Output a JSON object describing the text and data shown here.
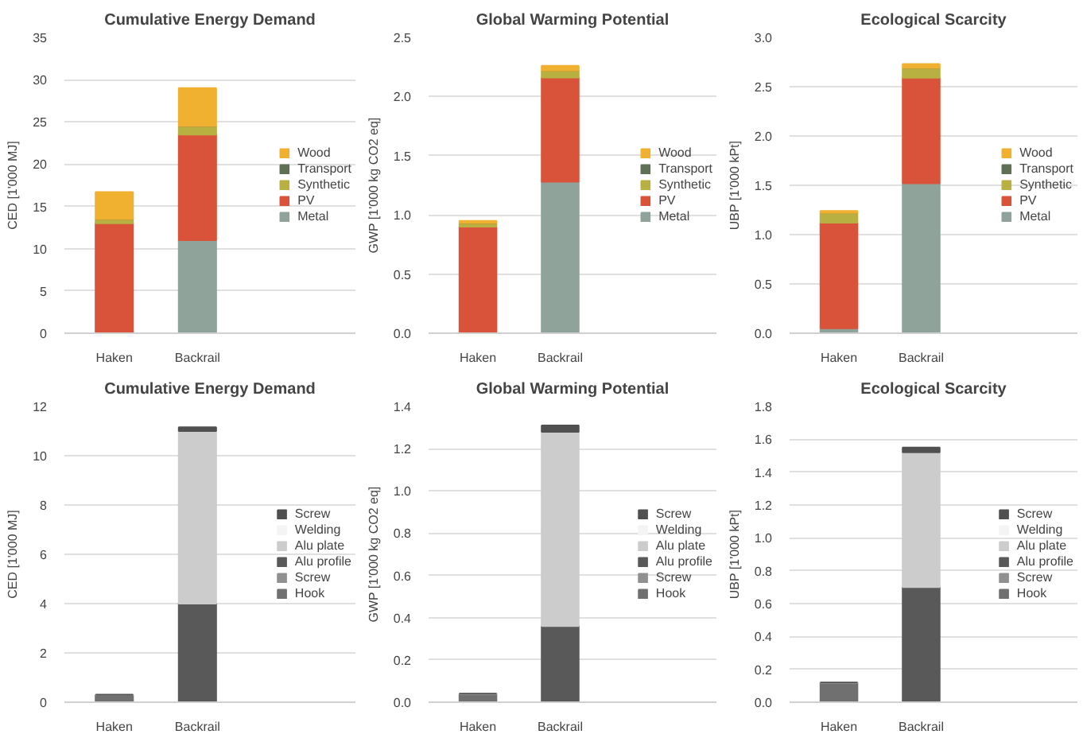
{
  "chart_data": [
    {
      "type": "bar",
      "title": "Cumulative Energy Demand",
      "ylabel": "CED [1'000 MJ]",
      "categories": [
        "Haken",
        "Backrail"
      ],
      "stacked": true,
      "ylim": [
        0,
        35
      ],
      "yticks": [
        0,
        5,
        10,
        15,
        20,
        25,
        30,
        35
      ],
      "grid": "y",
      "legend": "right",
      "series": [
        {
          "name": "Metal",
          "color": "#8fa39a",
          "values": [
            0,
            11
          ]
        },
        {
          "name": "PV",
          "color": "#d9533a",
          "values": [
            13,
            12.5
          ]
        },
        {
          "name": "Synthetic",
          "color": "#b8b040",
          "values": [
            0.5,
            1
          ]
        },
        {
          "name": "Transport",
          "color": "#5f7057",
          "values": [
            0,
            0
          ]
        },
        {
          "name": "Wood",
          "color": "#f0b030",
          "values": [
            3.2,
            4.5
          ]
        }
      ]
    },
    {
      "type": "bar",
      "title": "Global Warming Potential",
      "ylabel": "GWP [1'000 kg CO2 eq]",
      "categories": [
        "Haken",
        "Backrail"
      ],
      "stacked": true,
      "ylim": [
        0,
        2.5
      ],
      "yticks": [
        {
          "value": 0,
          "label": "0.0"
        },
        {
          "value": 0.5,
          "label": "0.5"
        },
        {
          "value": 1,
          "label": "1.0"
        },
        {
          "value": 1.5,
          "label": "1.5"
        },
        {
          "value": 2,
          "label": "2.0"
        },
        {
          "value": 2.5,
          "label": "2.5"
        }
      ],
      "grid": "y",
      "legend": "right",
      "series": [
        {
          "name": "Metal",
          "color": "#8fa39a",
          "values": [
            0,
            1.28
          ]
        },
        {
          "name": "PV",
          "color": "#d9533a",
          "values": [
            0.9,
            0.88
          ]
        },
        {
          "name": "Synthetic",
          "color": "#b8b040",
          "values": [
            0.03,
            0.06
          ]
        },
        {
          "name": "Transport",
          "color": "#5f7057",
          "values": [
            0,
            0
          ]
        },
        {
          "name": "Wood",
          "color": "#f0b030",
          "values": [
            0.02,
            0.04
          ]
        }
      ]
    },
    {
      "type": "bar",
      "title": "Ecological Scarcity",
      "ylabel": "UBP [1'000 kPt]",
      "categories": [
        "Haken",
        "Backrail"
      ],
      "stacked": true,
      "ylim": [
        0,
        3
      ],
      "yticks": [
        {
          "value": 0,
          "label": "0.0"
        },
        {
          "value": 0.5,
          "label": "0.5"
        },
        {
          "value": 1,
          "label": "1.0"
        },
        {
          "value": 1.5,
          "label": "1.5"
        },
        {
          "value": 2,
          "label": "2.0"
        },
        {
          "value": 2.5,
          "label": "2.5"
        },
        {
          "value": 3,
          "label": "3.0"
        }
      ],
      "grid": "y",
      "legend": "right",
      "series": [
        {
          "name": "Metal",
          "color": "#8fa39a",
          "values": [
            0.05,
            1.52
          ]
        },
        {
          "name": "PV",
          "color": "#d9533a",
          "values": [
            1.07,
            1.07
          ]
        },
        {
          "name": "Synthetic",
          "color": "#b8b040",
          "values": [
            0.1,
            0.1
          ]
        },
        {
          "name": "Transport",
          "color": "#5f7057",
          "values": [
            0,
            0
          ]
        },
        {
          "name": "Wood",
          "color": "#f0b030",
          "values": [
            0.02,
            0.04
          ]
        }
      ]
    },
    {
      "type": "bar",
      "title": "Cumulative Energy Demand",
      "ylabel": "CED [1'000 MJ]",
      "categories": [
        "Haken",
        "Backrail"
      ],
      "stacked": true,
      "ylim": [
        0,
        12
      ],
      "yticks": [
        0,
        2,
        4,
        6,
        8,
        10,
        12
      ],
      "grid": "y",
      "legend": "right",
      "series": [
        {
          "name": "Hook",
          "color": "#707070",
          "values": [
            0.3,
            0
          ]
        },
        {
          "name": "Screw",
          "color": "#909090",
          "values": [
            0,
            0
          ]
        },
        {
          "name": "Alu profile",
          "color": "#595959",
          "values": [
            0,
            4.0
          ]
        },
        {
          "name": "Alu plate",
          "color": "#cccccc",
          "values": [
            0,
            7.0
          ]
        },
        {
          "name": "Welding",
          "color": "#f4f4f4",
          "values": [
            0,
            0
          ]
        },
        {
          "name": "Screw",
          "color": "#505050",
          "values": [
            0,
            0.15
          ]
        }
      ]
    },
    {
      "type": "bar",
      "title": "Global Warming Potential",
      "ylabel": "GWP [1'000 kg CO2 eq]",
      "categories": [
        "Haken",
        "Backrail"
      ],
      "stacked": true,
      "ylim": [
        0,
        1.4
      ],
      "yticks": [
        {
          "value": 0,
          "label": "0.0"
        },
        {
          "value": 0.2,
          "label": "0.2"
        },
        {
          "value": 0.4,
          "label": "0.4"
        },
        {
          "value": 0.6,
          "label": "0.6"
        },
        {
          "value": 0.8,
          "label": "0.8"
        },
        {
          "value": 1,
          "label": "1.0"
        },
        {
          "value": 1.2,
          "label": "1.2"
        },
        {
          "value": 1.4,
          "label": "1.4"
        }
      ],
      "grid": "y",
      "legend": "right",
      "series": [
        {
          "name": "Hook",
          "color": "#707070",
          "values": [
            0.04,
            0
          ]
        },
        {
          "name": "Screw",
          "color": "#909090",
          "values": [
            0,
            0
          ]
        },
        {
          "name": "Alu profile",
          "color": "#595959",
          "values": [
            0,
            0.36
          ]
        },
        {
          "name": "Alu plate",
          "color": "#cccccc",
          "values": [
            0,
            0.92
          ]
        },
        {
          "name": "Welding",
          "color": "#f4f4f4",
          "values": [
            0,
            0
          ]
        },
        {
          "name": "Screw",
          "color": "#505050",
          "values": [
            0,
            0.03
          ]
        }
      ]
    },
    {
      "type": "bar",
      "title": "Ecological Scarcity",
      "ylabel": "UBP [1'000 kPt]",
      "categories": [
        "Haken",
        "Backrail"
      ],
      "stacked": true,
      "ylim": [
        0,
        1.8
      ],
      "yticks": [
        {
          "value": 0,
          "label": "0.0"
        },
        {
          "value": 0.2,
          "label": "0.2"
        },
        {
          "value": 0.4,
          "label": "0.4"
        },
        {
          "value": 0.6,
          "label": "0.6"
        },
        {
          "value": 0.8,
          "label": "0.8"
        },
        {
          "value": 1,
          "label": "1.0"
        },
        {
          "value": 1.2,
          "label": "1.2"
        },
        {
          "value": 1.4,
          "label": "1.4"
        },
        {
          "value": 1.6,
          "label": "1.6"
        },
        {
          "value": 1.8,
          "label": "1.8"
        }
      ],
      "grid": "y",
      "legend": "right",
      "series": [
        {
          "name": "Hook",
          "color": "#707070",
          "values": [
            0.12,
            0
          ]
        },
        {
          "name": "Screw",
          "color": "#909090",
          "values": [
            0,
            0
          ]
        },
        {
          "name": "Alu profile",
          "color": "#595959",
          "values": [
            0,
            0.7
          ]
        },
        {
          "name": "Alu plate",
          "color": "#cccccc",
          "values": [
            0,
            0.82
          ]
        },
        {
          "name": "Welding",
          "color": "#f4f4f4",
          "values": [
            0,
            0
          ]
        },
        {
          "name": "Screw",
          "color": "#505050",
          "values": [
            0,
            0.03
          ]
        }
      ]
    }
  ]
}
